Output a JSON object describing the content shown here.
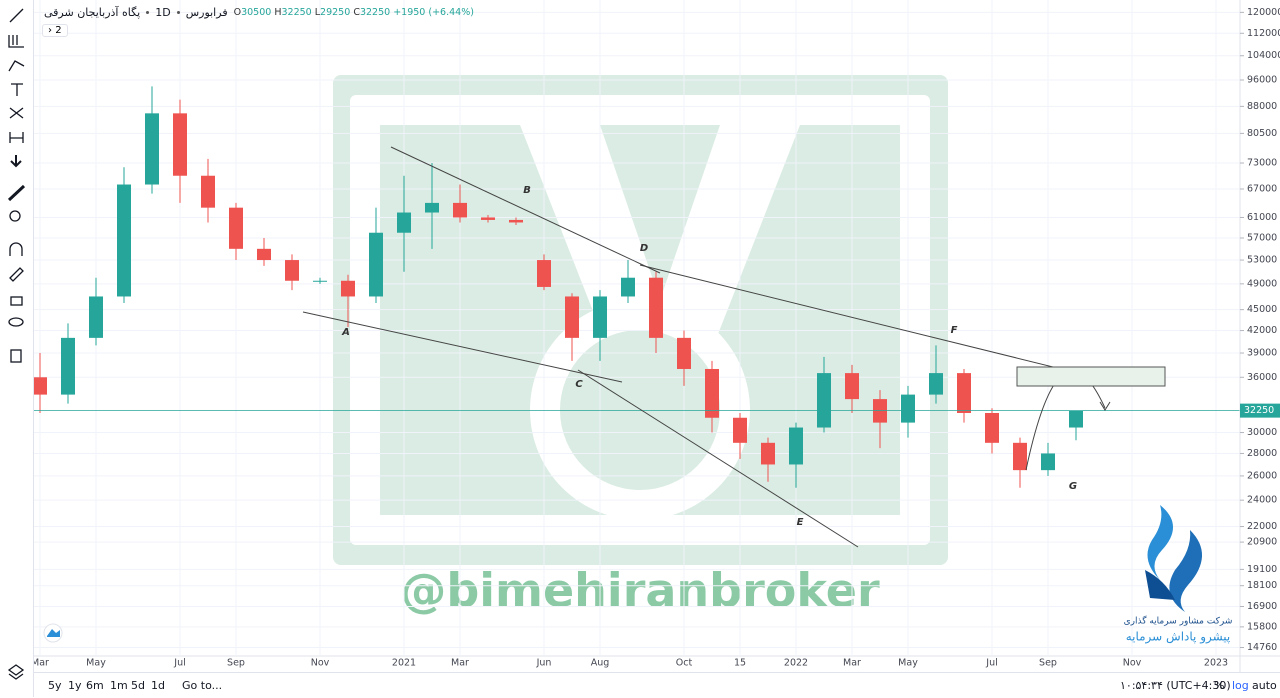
{
  "header": {
    "symbol": "پگاه آذربایجان شرقی",
    "interval": "1D",
    "exchange": "فرابورس",
    "ohlc_labels": [
      "O",
      "H",
      "L",
      "C"
    ],
    "change": "+1950 (+6.44%)",
    "toggle": "2"
  },
  "chart_data": {
    "type": "candlestick",
    "log_scale": true,
    "grid": true,
    "up_color": "#26a69a",
    "down_color": "#ef5350",
    "categories": [
      "Mar",
      null,
      "May",
      null,
      null,
      "Jul",
      null,
      "Sep",
      null,
      null,
      "Nov",
      null,
      null,
      "2021",
      null,
      "Mar",
      null,
      null,
      "Jun",
      null,
      "Aug",
      null,
      null,
      "Oct",
      null,
      "15",
      null,
      "2022",
      null,
      "Mar",
      null,
      "May",
      null,
      null,
      "Jul",
      null,
      "Sep",
      null,
      null,
      "Nov",
      null,
      null,
      "2023"
    ],
    "open": [
      36000,
      34000,
      41000,
      47000,
      68000,
      86000,
      70000,
      63000,
      55000,
      53000,
      49500,
      49500,
      47000,
      58000,
      62000,
      64000,
      61000,
      60500,
      53000,
      47000,
      41000,
      47000,
      50000,
      41000,
      37000,
      31500,
      29000,
      27000,
      30500,
      36500,
      33500,
      31000,
      34000,
      36500,
      32000,
      29000,
      26500,
      30500,
      null,
      null,
      null,
      null,
      null
    ],
    "high": [
      39000,
      43000,
      50000,
      72000,
      94000,
      90000,
      74000,
      64000,
      57000,
      54000,
      50000,
      50500,
      63000,
      70000,
      73000,
      68000,
      61500,
      61000,
      54000,
      47500,
      48000,
      53000,
      51000,
      42000,
      38000,
      32000,
      29500,
      31000,
      38500,
      37500,
      34500,
      35000,
      40000,
      37000,
      32500,
      29500,
      29000,
      32250,
      null,
      null,
      null,
      null,
      null
    ],
    "low": [
      32000,
      33000,
      40000,
      46000,
      66000,
      64000,
      60000,
      53000,
      52000,
      48000,
      49000,
      42500,
      46000,
      51000,
      55000,
      60000,
      60000,
      59500,
      48000,
      38000,
      38000,
      46000,
      39000,
      35000,
      30000,
      27500,
      25500,
      25000,
      30000,
      32000,
      28500,
      29500,
      33000,
      31000,
      28000,
      25000,
      26000,
      29250,
      null,
      null,
      null,
      null,
      null
    ],
    "close": [
      34000,
      41000,
      47000,
      68000,
      86000,
      70000,
      63000,
      55000,
      53000,
      49500,
      49500,
      47000,
      58000,
      62000,
      64000,
      61000,
      60500,
      60000,
      48500,
      41000,
      47000,
      50000,
      41000,
      37000,
      31500,
      29000,
      27000,
      30500,
      36500,
      33500,
      31000,
      34000,
      36500,
      32000,
      29000,
      26500,
      28000,
      32250,
      null,
      null,
      null,
      null,
      null
    ],
    "ylim": [
      14400,
      125000
    ],
    "yticks": [
      120000,
      112000,
      104000,
      96000,
      88000,
      80500,
      73000,
      67000,
      61000,
      57000,
      53000,
      49000,
      45000,
      42000,
      39000,
      36000,
      30000,
      28000,
      26000,
      24000,
      22000,
      20900,
      19100,
      18100,
      16900,
      15800,
      14760
    ],
    "annotations": [
      "A",
      "B",
      "C",
      "D",
      "E",
      "F",
      "G"
    ],
    "watermark": "@bimehiranbroker",
    "logo_lines": [
      "شرکت مشاور سرمایه گذاری",
      "پیشرو پاداش سرمایه"
    ]
  },
  "bottom_bar": {
    "ranges": [
      "5y",
      "1y",
      "6m",
      "1m",
      "5d",
      "1d"
    ],
    "goto": "Go to...",
    "clock": "۱۰:۵۴:۳۴ (UTC+4:30)",
    "percent": "%",
    "log": "log",
    "auto": "auto"
  }
}
